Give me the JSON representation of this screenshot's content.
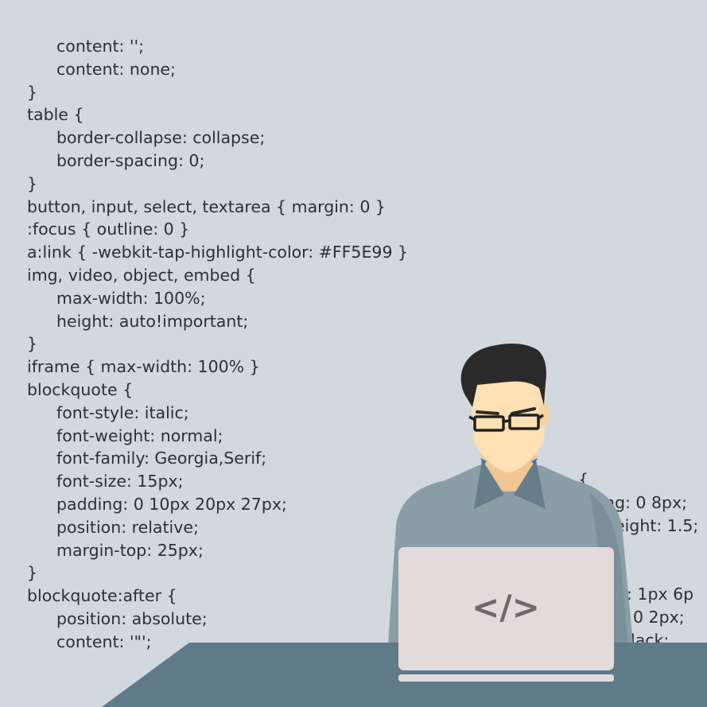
{
  "code_lines": [
    {
      "text": "content: '';",
      "indent": true
    },
    {
      "text": "content: none;",
      "indent": true
    },
    {
      "text": "}",
      "indent": false
    },
    {
      "text": "table {",
      "indent": false
    },
    {
      "text": "border-collapse: collapse;",
      "indent": true
    },
    {
      "text": "border-spacing: 0;",
      "indent": true
    },
    {
      "text": "}",
      "indent": false
    },
    {
      "text": "button, input, select, textarea { margin: 0 }",
      "indent": false
    },
    {
      "text": ":focus { outline: 0 }",
      "indent": false
    },
    {
      "text": "a:link { -webkit-tap-highlight-color: #FF5E99 }",
      "indent": false
    },
    {
      "text": "img, video, object, embed {",
      "indent": false
    },
    {
      "text": "max-width: 100%;",
      "indent": true
    },
    {
      "text": "height: auto!important;",
      "indent": true
    },
    {
      "text": "}",
      "indent": false
    },
    {
      "text": "iframe { max-width: 100% }",
      "indent": false
    },
    {
      "text": "blockquote {",
      "indent": false
    },
    {
      "text": "font-style: italic;",
      "indent": true
    },
    {
      "text": "font-weight: normal;",
      "indent": true
    },
    {
      "text": "font-family: Georgia,Serif;",
      "indent": true
    },
    {
      "text": "font-size: 15px;",
      "indent": true
    },
    {
      "text": "padding: 0 10px 20px 27px;",
      "indent": true
    },
    {
      "text": "position: relative;",
      "indent": true
    },
    {
      "text": "margin-top: 25px;",
      "indent": true
    },
    {
      "text": "}",
      "indent": false
    },
    {
      "text": "blockquote:after {",
      "indent": false
    },
    {
      "text": "position: absolute;",
      "indent": true
    },
    {
      "text": "content: '\"';",
      "indent": true
    }
  ],
  "right_fragments": {
    "f1": "{",
    "f2": "ng: 0 8px;",
    "f3": "eight: 1.5;",
    "f4": ": 1px 6p",
    "f5": "0 2px;",
    "f6": "black;"
  },
  "laptop_symbol": "</>",
  "colors": {
    "background": "#d1d9df",
    "code_text": "#2d2f33",
    "desk": "#5f7a88",
    "laptop": "#e3dadb",
    "shirt": "#8a9ea8",
    "skin": "#fde0b3",
    "hair": "#2b2a2a"
  }
}
